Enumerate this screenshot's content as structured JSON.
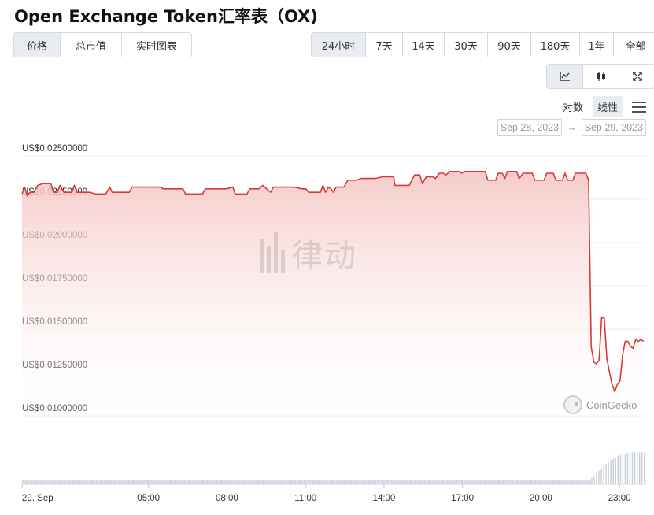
{
  "title": "Open Exchange Token汇率表（OX)",
  "tabs": [
    {
      "label": "价格",
      "active": true
    },
    {
      "label": "总市值",
      "active": false
    },
    {
      "label": "实时图表",
      "active": false
    }
  ],
  "ranges": [
    {
      "label": "24小时",
      "active": true
    },
    {
      "label": "7天",
      "active": false
    },
    {
      "label": "14天",
      "active": false
    },
    {
      "label": "30天",
      "active": false
    },
    {
      "label": "90天",
      "active": false
    },
    {
      "label": "180天",
      "active": false
    },
    {
      "label": "1年",
      "active": false
    },
    {
      "label": "全部",
      "active": false
    }
  ],
  "views": [
    {
      "icon": "line-chart-icon",
      "active": true
    },
    {
      "icon": "candlestick-icon",
      "active": false
    },
    {
      "icon": "fullscreen-icon",
      "active": false
    }
  ],
  "scale": {
    "log_label": "对数",
    "linear_label": "线性",
    "active": "linear"
  },
  "date_range": {
    "from": "Sep 28, 2023",
    "arrow": "→",
    "to": "Sep 29, 2023"
  },
  "watermark": {
    "text": "律动"
  },
  "attribution": {
    "text": "CoinGecko"
  },
  "colors": {
    "line": "#d8393a",
    "fill_top": "#f4c6c3",
    "volume": "#c9cfdb",
    "grid": "#ececec"
  },
  "chart_data": {
    "type": "area",
    "title": "",
    "ylabel": "",
    "xlabel": "",
    "y_ticks": [
      {
        "value": 0.025,
        "label": "US$0.02500000"
      },
      {
        "value": 0.0225,
        "label": "US$0.02250000"
      },
      {
        "value": 0.02,
        "label": "US$0.02000000"
      },
      {
        "value": 0.0175,
        "label": "US$0.01750000"
      },
      {
        "value": 0.015,
        "label": "US$0.01500000"
      },
      {
        "value": 0.0125,
        "label": "US$0.01250000"
      },
      {
        "value": 0.01,
        "label": "US$0.01000000"
      }
    ],
    "ylim": [
      0.01,
      0.025
    ],
    "xlim": [
      0,
      23.85
    ],
    "x_ticks": [
      {
        "value": 0,
        "label": "29. Sep"
      },
      {
        "value": 4.833,
        "label": "05:00"
      },
      {
        "value": 7.833,
        "label": "08:00"
      },
      {
        "value": 10.833,
        "label": "11:00"
      },
      {
        "value": 13.833,
        "label": "14:00"
      },
      {
        "value": 16.833,
        "label": "17:00"
      },
      {
        "value": 19.833,
        "label": "20:00"
      },
      {
        "value": 22.833,
        "label": "23:00"
      }
    ],
    "x_unit": "hours after 29. Sep 00:00 minus offset",
    "series": [
      {
        "points": [
          [
            0.0,
            0.0228
          ],
          [
            0.1,
            0.0232
          ],
          [
            0.2,
            0.0227
          ],
          [
            0.3,
            0.0229
          ],
          [
            0.45,
            0.0229
          ],
          [
            0.6,
            0.0233
          ],
          [
            0.8,
            0.0234
          ],
          [
            1.1,
            0.0234
          ],
          [
            1.2,
            0.0229
          ],
          [
            1.35,
            0.0229
          ],
          [
            1.45,
            0.0233
          ],
          [
            1.6,
            0.0229
          ],
          [
            1.9,
            0.0229
          ],
          [
            2.0,
            0.0233
          ],
          [
            2.1,
            0.0229
          ],
          [
            2.6,
            0.0229
          ],
          [
            2.8,
            0.0228
          ],
          [
            3.2,
            0.0228
          ],
          [
            3.35,
            0.0232
          ],
          [
            3.45,
            0.0229
          ],
          [
            4.1,
            0.0229
          ],
          [
            4.2,
            0.0232
          ],
          [
            5.0,
            0.0232
          ],
          [
            5.3,
            0.0232
          ],
          [
            5.4,
            0.0231
          ],
          [
            6.15,
            0.0231
          ],
          [
            6.25,
            0.0228
          ],
          [
            6.9,
            0.0228
          ],
          [
            7.0,
            0.0231
          ],
          [
            7.8,
            0.0231
          ],
          [
            8.05,
            0.0232
          ],
          [
            8.15,
            0.0228
          ],
          [
            8.6,
            0.0228
          ],
          [
            8.7,
            0.0231
          ],
          [
            9.05,
            0.0231
          ],
          [
            9.2,
            0.0233
          ],
          [
            9.35,
            0.0231
          ],
          [
            9.5,
            0.0229
          ],
          [
            9.6,
            0.0232
          ],
          [
            10.4,
            0.0232
          ],
          [
            10.7,
            0.0231
          ],
          [
            10.85,
            0.0231
          ],
          [
            10.95,
            0.0229
          ],
          [
            11.4,
            0.0229
          ],
          [
            11.5,
            0.0233
          ],
          [
            11.6,
            0.0229
          ],
          [
            11.7,
            0.0232
          ],
          [
            11.8,
            0.0231
          ],
          [
            11.9,
            0.0229
          ],
          [
            12.0,
            0.0232
          ],
          [
            12.3,
            0.0232
          ],
          [
            12.45,
            0.0236
          ],
          [
            12.8,
            0.0236
          ],
          [
            12.95,
            0.0237
          ],
          [
            13.5,
            0.0237
          ],
          [
            13.8,
            0.0238
          ],
          [
            14.2,
            0.0238
          ],
          [
            14.25,
            0.0233
          ],
          [
            14.8,
            0.0233
          ],
          [
            15.0,
            0.0239
          ],
          [
            15.2,
            0.0239
          ],
          [
            15.3,
            0.0234
          ],
          [
            15.45,
            0.0238
          ],
          [
            15.7,
            0.0238
          ],
          [
            15.8,
            0.0237
          ],
          [
            15.95,
            0.024
          ],
          [
            16.1,
            0.024
          ],
          [
            16.2,
            0.0239
          ],
          [
            16.35,
            0.0241
          ],
          [
            16.7,
            0.0241
          ],
          [
            16.8,
            0.024
          ],
          [
            16.9,
            0.0241
          ],
          [
            17.7,
            0.0241
          ],
          [
            17.8,
            0.0236
          ],
          [
            18.1,
            0.0236
          ],
          [
            18.2,
            0.024
          ],
          [
            18.35,
            0.024
          ],
          [
            18.45,
            0.0237
          ],
          [
            18.55,
            0.0241
          ],
          [
            18.9,
            0.0241
          ],
          [
            19.0,
            0.0237
          ],
          [
            19.15,
            0.024
          ],
          [
            19.5,
            0.024
          ],
          [
            19.6,
            0.0236
          ],
          [
            19.95,
            0.0236
          ],
          [
            20.05,
            0.024
          ],
          [
            20.3,
            0.024
          ],
          [
            20.4,
            0.0236
          ],
          [
            20.65,
            0.0236
          ],
          [
            20.75,
            0.024
          ],
          [
            20.85,
            0.0236
          ],
          [
            21.05,
            0.0236
          ],
          [
            21.15,
            0.024
          ],
          [
            21.55,
            0.024
          ],
          [
            21.65,
            0.0236
          ],
          [
            21.75,
            0.014
          ],
          [
            21.85,
            0.0131
          ],
          [
            21.95,
            0.013
          ],
          [
            22.05,
            0.0132
          ],
          [
            22.15,
            0.0157
          ],
          [
            22.25,
            0.0156
          ],
          [
            22.35,
            0.0133
          ],
          [
            22.45,
            0.0125
          ],
          [
            22.55,
            0.0118
          ],
          [
            22.65,
            0.0114
          ],
          [
            22.75,
            0.0118
          ],
          [
            22.85,
            0.012
          ],
          [
            22.95,
            0.0135
          ],
          [
            23.05,
            0.0143
          ],
          [
            23.15,
            0.0143
          ],
          [
            23.25,
            0.014
          ],
          [
            23.35,
            0.0139
          ],
          [
            23.45,
            0.0144
          ],
          [
            23.55,
            0.0143
          ],
          [
            23.65,
            0.0144
          ],
          [
            23.75,
            0.0143
          ]
        ]
      }
    ],
    "volume": {
      "x_start": 0.0,
      "x_step": 0.0923,
      "relative_heights": [
        0.1,
        0.1,
        0.11,
        0.11,
        0.1,
        0.1,
        0.1,
        0.1,
        0.1,
        0.1,
        0.1,
        0.1,
        0.1,
        0.1,
        0.1,
        0.1,
        0.1,
        0.1,
        0.1,
        0.1,
        0.11,
        0.11,
        0.11,
        0.11,
        0.11,
        0.11,
        0.11,
        0.11,
        0.11,
        0.11,
        0.11,
        0.11,
        0.11,
        0.11,
        0.11,
        0.11,
        0.11,
        0.11,
        0.11,
        0.11,
        0.12,
        0.12,
        0.12,
        0.12,
        0.12,
        0.12,
        0.12,
        0.12,
        0.12,
        0.12,
        0.12,
        0.12,
        0.12,
        0.12,
        0.12,
        0.12,
        0.12,
        0.12,
        0.12,
        0.12,
        0.12,
        0.12,
        0.12,
        0.12,
        0.12,
        0.12,
        0.12,
        0.12,
        0.12,
        0.12,
        0.12,
        0.12,
        0.12,
        0.12,
        0.12,
        0.12,
        0.12,
        0.12,
        0.12,
        0.12,
        0.12,
        0.12,
        0.12,
        0.12,
        0.12,
        0.12,
        0.12,
        0.12,
        0.12,
        0.12,
        0.12,
        0.12,
        0.12,
        0.12,
        0.12,
        0.12,
        0.12,
        0.12,
        0.12,
        0.12,
        0.12,
        0.12,
        0.12,
        0.12,
        0.12,
        0.12,
        0.12,
        0.12,
        0.12,
        0.12,
        0.12,
        0.12,
        0.12,
        0.12,
        0.12,
        0.12,
        0.12,
        0.12,
        0.12,
        0.12,
        0.12,
        0.12,
        0.12,
        0.12,
        0.12,
        0.12,
        0.12,
        0.12,
        0.12,
        0.12,
        0.12,
        0.12,
        0.12,
        0.12,
        0.12,
        0.12,
        0.12,
        0.12,
        0.12,
        0.12,
        0.12,
        0.12,
        0.12,
        0.12,
        0.12,
        0.12,
        0.12,
        0.12,
        0.12,
        0.12,
        0.12,
        0.12,
        0.12,
        0.12,
        0.12,
        0.12,
        0.12,
        0.12,
        0.12,
        0.12,
        0.12,
        0.12,
        0.12,
        0.12,
        0.12,
        0.12,
        0.12,
        0.12,
        0.12,
        0.12,
        0.12,
        0.12,
        0.12,
        0.12,
        0.12,
        0.12,
        0.12,
        0.12,
        0.12,
        0.12,
        0.12,
        0.12,
        0.12,
        0.12,
        0.12,
        0.12,
        0.12,
        0.12,
        0.12,
        0.12,
        0.12,
        0.12,
        0.12,
        0.12,
        0.12,
        0.12,
        0.12,
        0.12,
        0.12,
        0.12,
        0.12,
        0.12,
        0.12,
        0.12,
        0.12,
        0.12,
        0.12,
        0.12,
        0.12,
        0.12,
        0.12,
        0.12,
        0.12,
        0.12,
        0.12,
        0.12,
        0.12,
        0.12,
        0.12,
        0.12,
        0.12,
        0.12,
        0.12,
        0.12,
        0.12,
        0.12,
        0.12,
        0.12,
        0.12,
        0.12,
        0.12,
        0.12,
        0.12,
        0.12,
        0.12,
        0.12,
        0.12,
        0.12,
        0.12,
        0.12,
        0.12,
        0.12,
        0.12,
        0.12,
        0.12,
        0.12,
        0.12,
        0.12,
        0.12,
        0.12,
        0.12,
        0.12,
        0.12,
        0.12,
        0.12,
        0.12,
        0.12,
        0.12,
        0.12,
        0.12,
        0.12,
        0.12,
        0.12,
        0.12,
        0.12,
        0.12,
        0.12,
        0.12,
        0.12,
        0.12,
        0.12,
        0.12,
        0.12,
        0.12,
        0.12,
        0.12,
        0.12,
        0.12,
        0.12,
        0.12,
        0.12,
        0.12,
        0.12,
        0.12,
        0.12,
        0.12,
        0.12,
        0.12,
        0.12,
        0.12,
        0.12,
        0.12,
        0.12,
        0.12,
        0.12,
        0.12,
        0.12,
        0.12,
        0.12,
        0.12,
        0.12,
        0.12,
        0.12,
        0.12,
        0.12,
        0.12,
        0.12,
        0.12,
        0.12,
        0.12,
        0.12,
        0.12,
        0.12,
        0.12,
        0.12,
        0.12,
        0.12,
        0.12,
        0.12,
        0.12,
        0.12,
        0.12,
        0.12,
        0.12,
        0.12,
        0.12,
        0.12,
        0.12,
        0.12,
        0.12,
        0.12,
        0.12,
        0.12,
        0.12,
        0.12,
        0.12,
        0.12,
        0.12,
        0.12,
        0.12,
        0.12,
        0.12,
        0.12,
        0.12,
        0.12,
        0.12,
        0.12,
        0.12,
        0.12,
        0.12,
        0.12,
        0.12,
        0.12,
        0.12,
        0.12,
        0.12,
        0.12,
        0.12,
        0.12,
        0.12,
        0.12,
        0.12,
        0.12,
        0.12,
        0.12,
        0.12,
        0.12,
        0.12,
        0.12,
        0.12,
        0.12,
        0.12,
        0.12,
        0.12,
        0.12,
        0.12,
        0.12,
        0.12,
        0.12,
        0.12,
        0.12,
        0.12,
        0.12,
        0.12,
        0.12,
        0.12,
        0.12,
        0.12,
        0.12,
        0.12,
        0.12,
        0.12,
        0.12,
        0.12,
        0.12,
        0.12,
        0.12,
        0.12,
        0.12,
        0.12,
        0.12,
        0.12,
        0.12,
        0.12,
        0.12,
        0.12,
        0.12,
        0.12,
        0.12,
        0.12,
        0.12,
        0.12,
        0.12,
        0.12,
        0.12,
        0.12,
        0.12,
        0.12,
        0.12,
        0.12,
        0.12,
        0.12,
        0.12,
        0.12,
        0.12,
        0.12,
        0.12,
        0.12,
        0.12,
        0.12,
        0.12,
        0.12,
        0.12,
        0.12,
        0.12,
        0.12,
        0.12,
        0.12,
        0.12,
        0.12,
        0.12,
        0.12,
        0.12,
        0.12,
        0.12,
        0.12,
        0.12,
        0.12,
        0.12,
        0.12,
        0.12,
        0.12,
        0.12,
        0.12,
        0.12,
        0.12,
        0.12,
        0.12,
        0.12,
        0.12,
        0.12,
        0.12,
        0.12,
        0.12,
        0.12,
        0.12,
        0.12,
        0.12,
        0.12,
        0.12,
        0.12,
        0.12,
        0.12,
        0.12,
        0.12,
        0.12,
        0.12,
        0.12,
        0.12,
        0.12,
        0.12,
        0.12,
        0.12,
        0.12,
        0.12,
        0.12,
        0.12,
        0.12,
        0.12,
        0.12,
        0.12,
        0.12,
        0.12,
        0.12,
        0.12,
        0.12,
        0.12,
        0.12,
        0.12,
        0.12,
        0.12,
        0.12,
        0.12,
        0.12,
        0.12,
        0.12,
        0.12,
        0.12,
        0.12,
        0.12,
        0.12,
        0.12,
        0.12,
        0.12,
        0.12,
        0.12,
        0.12,
        0.12,
        0.12,
        0.12,
        0.12,
        0.12,
        0.12,
        0.12,
        0.12,
        0.12,
        0.12,
        0.12,
        0.12,
        0.12,
        0.12,
        0.12,
        0.12,
        0.12,
        0.12,
        0.12,
        0.12,
        0.12,
        0.12,
        0.12,
        0.12,
        0.12,
        0.12,
        0.12,
        0.12,
        0.12,
        0.12,
        0.12,
        0.12,
        0.12,
        0.12,
        0.12,
        0.12,
        0.12,
        0.12,
        0.12,
        0.12,
        0.12,
        0.12,
        0.12,
        0.12,
        0.12,
        0.12,
        0.12,
        0.12,
        0.12,
        0.12,
        0.12,
        0.12,
        0.12,
        0.12,
        0.12,
        0.12,
        0.12,
        0.12,
        0.12,
        0.12,
        0.12,
        0.12,
        0.12,
        0.12,
        0.12,
        0.12,
        0.12,
        0.12,
        0.12,
        0.12,
        0.12,
        0.12,
        0.12,
        0.12,
        0.12,
        0.12,
        0.12,
        0.12,
        0.12,
        0.12,
        0.12,
        0.12,
        0.12
      ],
      "tail_relative_heights": [
        0.18,
        0.25,
        0.33,
        0.41,
        0.48,
        0.55,
        0.62,
        0.68,
        0.74,
        0.79,
        0.83,
        0.87,
        0.9,
        0.93,
        0.95,
        0.97,
        0.98,
        0.99,
        1.0,
        1.0,
        0.99,
        1.0,
        1.0
      ]
    }
  }
}
